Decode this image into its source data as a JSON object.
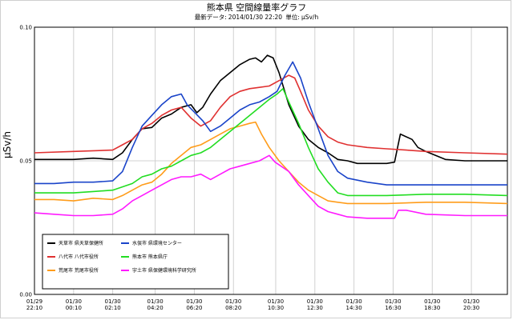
{
  "chart_data": {
    "type": "line",
    "title": "熊本県 空間線量率グラフ",
    "subtitle": {
      "latest_label": "最新データ:",
      "latest_value": "2014/01/30 22:20",
      "unit_label": "単位:",
      "unit_value": "μSv/h"
    },
    "ylabel": "μSv/h",
    "ylim": [
      0,
      0.1
    ],
    "yticks": [
      "0.00",
      "0.05",
      "0.10"
    ],
    "ytick_values": [
      0,
      0.05,
      0.1
    ],
    "grid": true,
    "legend_position": "bottom-left",
    "x_ticks": [
      {
        "date": "01/29",
        "time": "22:10"
      },
      {
        "date": "01/30",
        "time": "00:10"
      },
      {
        "date": "01/30",
        "time": "02:10"
      },
      {
        "date": "01/30",
        "time": "04:20"
      },
      {
        "date": "01/30",
        "time": "06:20"
      },
      {
        "date": "01/30",
        "time": "08:20"
      },
      {
        "date": "01/30",
        "time": "10:30"
      },
      {
        "date": "01/30",
        "time": "12:30"
      },
      {
        "date": "01/30",
        "time": "14:30"
      },
      {
        "date": "01/30",
        "time": "16:30"
      },
      {
        "date": "01/30",
        "time": "18:30"
      },
      {
        "date": "01/30",
        "time": "20:30"
      }
    ],
    "x_tick_hours": [
      0,
      2,
      4,
      6.17,
      8.17,
      10.17,
      12.33,
      14.33,
      16.33,
      18.33,
      20.33,
      22.33
    ],
    "x_range_hours": [
      0,
      24.17
    ],
    "series": [
      {
        "name": "天草市 県天草保健所",
        "color": "#000000",
        "points": [
          [
            0,
            0.0505
          ],
          [
            1,
            0.0505
          ],
          [
            2,
            0.0505
          ],
          [
            3,
            0.051
          ],
          [
            4,
            0.0505
          ],
          [
            4.5,
            0.053
          ],
          [
            5,
            0.058
          ],
          [
            5.5,
            0.062
          ],
          [
            6,
            0.0625
          ],
          [
            6.5,
            0.066
          ],
          [
            7,
            0.0675
          ],
          [
            7.5,
            0.07
          ],
          [
            8,
            0.071
          ],
          [
            8.3,
            0.068
          ],
          [
            8.6,
            0.07
          ],
          [
            9,
            0.075
          ],
          [
            9.5,
            0.08
          ],
          [
            10,
            0.083
          ],
          [
            10.5,
            0.086
          ],
          [
            11,
            0.088
          ],
          [
            11.3,
            0.0885
          ],
          [
            11.6,
            0.087
          ],
          [
            11.9,
            0.0895
          ],
          [
            12.2,
            0.0885
          ],
          [
            12.5,
            0.083
          ],
          [
            13,
            0.071
          ],
          [
            13.5,
            0.063
          ],
          [
            14,
            0.058
          ],
          [
            14.5,
            0.055
          ],
          [
            15,
            0.053
          ],
          [
            15.5,
            0.0505
          ],
          [
            16,
            0.05
          ],
          [
            16.5,
            0.049
          ],
          [
            17,
            0.049
          ],
          [
            18,
            0.049
          ],
          [
            18.4,
            0.0495
          ],
          [
            18.7,
            0.06
          ],
          [
            19.3,
            0.058
          ],
          [
            19.6,
            0.055
          ],
          [
            20,
            0.0535
          ],
          [
            21,
            0.0505
          ],
          [
            22,
            0.05
          ],
          [
            24.17,
            0.05
          ]
        ]
      },
      {
        "name": "八代市 八代市役所",
        "color": "#e03131",
        "points": [
          [
            0,
            0.053
          ],
          [
            2,
            0.0535
          ],
          [
            4,
            0.054
          ],
          [
            4.5,
            0.056
          ],
          [
            5,
            0.058
          ],
          [
            5.5,
            0.062
          ],
          [
            6,
            0.064
          ],
          [
            6.5,
            0.067
          ],
          [
            7,
            0.069
          ],
          [
            7.5,
            0.07
          ],
          [
            8,
            0.066
          ],
          [
            8.5,
            0.063
          ],
          [
            9,
            0.065
          ],
          [
            9.5,
            0.07
          ],
          [
            10,
            0.074
          ],
          [
            10.5,
            0.076
          ],
          [
            11,
            0.077
          ],
          [
            11.5,
            0.0775
          ],
          [
            12,
            0.078
          ],
          [
            12.5,
            0.08
          ],
          [
            13,
            0.082
          ],
          [
            13.3,
            0.081
          ],
          [
            13.6,
            0.076
          ],
          [
            14,
            0.069
          ],
          [
            14.5,
            0.063
          ],
          [
            15,
            0.059
          ],
          [
            15.5,
            0.057
          ],
          [
            16,
            0.056
          ],
          [
            17,
            0.055
          ],
          [
            18,
            0.0545
          ],
          [
            19,
            0.054
          ],
          [
            20,
            0.0535
          ],
          [
            22,
            0.053
          ],
          [
            24.17,
            0.0525
          ]
        ]
      },
      {
        "name": "荒尾市 荒尾市役所",
        "color": "#ff9c1a",
        "points": [
          [
            0,
            0.0355
          ],
          [
            1,
            0.0355
          ],
          [
            2,
            0.035
          ],
          [
            3,
            0.036
          ],
          [
            4,
            0.0355
          ],
          [
            4.5,
            0.037
          ],
          [
            5,
            0.039
          ],
          [
            5.5,
            0.041
          ],
          [
            6,
            0.042
          ],
          [
            6.5,
            0.045
          ],
          [
            7,
            0.049
          ],
          [
            7.5,
            0.052
          ],
          [
            8,
            0.055
          ],
          [
            8.5,
            0.056
          ],
          [
            9,
            0.058
          ],
          [
            9.5,
            0.06
          ],
          [
            10,
            0.062
          ],
          [
            10.5,
            0.063
          ],
          [
            11,
            0.064
          ],
          [
            11.3,
            0.0645
          ],
          [
            11.6,
            0.06
          ],
          [
            12,
            0.055
          ],
          [
            12.5,
            0.05
          ],
          [
            13,
            0.046
          ],
          [
            13.5,
            0.042
          ],
          [
            14,
            0.039
          ],
          [
            14.5,
            0.037
          ],
          [
            15,
            0.035
          ],
          [
            15.5,
            0.0345
          ],
          [
            16,
            0.034
          ],
          [
            18,
            0.034
          ],
          [
            20,
            0.0345
          ],
          [
            22,
            0.0345
          ],
          [
            24.17,
            0.034
          ]
        ]
      },
      {
        "name": "水俣市 県環境センター",
        "color": "#1a44c9",
        "points": [
          [
            0,
            0.0415
          ],
          [
            1,
            0.0415
          ],
          [
            2,
            0.042
          ],
          [
            3,
            0.042
          ],
          [
            4,
            0.0425
          ],
          [
            4.5,
            0.046
          ],
          [
            5,
            0.055
          ],
          [
            5.5,
            0.063
          ],
          [
            6,
            0.067
          ],
          [
            6.5,
            0.071
          ],
          [
            7,
            0.074
          ],
          [
            7.5,
            0.075
          ],
          [
            7.8,
            0.071
          ],
          [
            8.2,
            0.068
          ],
          [
            8.6,
            0.065
          ],
          [
            9,
            0.061
          ],
          [
            9.5,
            0.063
          ],
          [
            10,
            0.066
          ],
          [
            10.5,
            0.069
          ],
          [
            11,
            0.071
          ],
          [
            11.5,
            0.072
          ],
          [
            12,
            0.074
          ],
          [
            12.4,
            0.076
          ],
          [
            12.8,
            0.082
          ],
          [
            13.2,
            0.087
          ],
          [
            13.6,
            0.081
          ],
          [
            14,
            0.072
          ],
          [
            14.5,
            0.062
          ],
          [
            15,
            0.052
          ],
          [
            15.5,
            0.046
          ],
          [
            16,
            0.0435
          ],
          [
            17,
            0.042
          ],
          [
            18,
            0.041
          ],
          [
            20,
            0.041
          ],
          [
            22,
            0.041
          ],
          [
            24.17,
            0.041
          ]
        ]
      },
      {
        "name": "熊本市 熊本県庁",
        "color": "#22dd22",
        "points": [
          [
            0,
            0.038
          ],
          [
            1,
            0.038
          ],
          [
            2,
            0.038
          ],
          [
            3,
            0.0385
          ],
          [
            4,
            0.039
          ],
          [
            5,
            0.0415
          ],
          [
            5.5,
            0.044
          ],
          [
            6,
            0.045
          ],
          [
            6.5,
            0.047
          ],
          [
            7,
            0.048
          ],
          [
            7.5,
            0.05
          ],
          [
            8,
            0.052
          ],
          [
            8.5,
            0.053
          ],
          [
            9,
            0.055
          ],
          [
            9.5,
            0.058
          ],
          [
            10,
            0.061
          ],
          [
            10.5,
            0.064
          ],
          [
            11,
            0.067
          ],
          [
            11.5,
            0.07
          ],
          [
            12,
            0.073
          ],
          [
            12.4,
            0.075
          ],
          [
            12.7,
            0.077
          ],
          [
            13,
            0.072
          ],
          [
            13.5,
            0.064
          ],
          [
            14,
            0.055
          ],
          [
            14.5,
            0.047
          ],
          [
            15,
            0.042
          ],
          [
            15.5,
            0.038
          ],
          [
            16,
            0.037
          ],
          [
            18,
            0.037
          ],
          [
            20,
            0.0375
          ],
          [
            22,
            0.0375
          ],
          [
            24.17,
            0.037
          ]
        ]
      },
      {
        "name": "宇土市 県保健環境科学研究所",
        "color": "#ff1aff",
        "points": [
          [
            0,
            0.0305
          ],
          [
            1,
            0.03
          ],
          [
            2,
            0.0295
          ],
          [
            3,
            0.0295
          ],
          [
            4,
            0.03
          ],
          [
            4.5,
            0.032
          ],
          [
            5,
            0.035
          ],
          [
            5.5,
            0.037
          ],
          [
            6,
            0.039
          ],
          [
            6.5,
            0.041
          ],
          [
            7,
            0.043
          ],
          [
            7.5,
            0.044
          ],
          [
            8,
            0.044
          ],
          [
            8.5,
            0.045
          ],
          [
            9,
            0.043
          ],
          [
            9.5,
            0.045
          ],
          [
            10,
            0.047
          ],
          [
            10.5,
            0.048
          ],
          [
            11,
            0.049
          ],
          [
            11.5,
            0.05
          ],
          [
            12,
            0.052
          ],
          [
            12.3,
            0.0495
          ],
          [
            12.6,
            0.048
          ],
          [
            13,
            0.046
          ],
          [
            13.5,
            0.041
          ],
          [
            14,
            0.037
          ],
          [
            14.5,
            0.033
          ],
          [
            15,
            0.031
          ],
          [
            15.5,
            0.03
          ],
          [
            16,
            0.029
          ],
          [
            17,
            0.0285
          ],
          [
            18,
            0.0285
          ],
          [
            18.4,
            0.0285
          ],
          [
            18.6,
            0.0315
          ],
          [
            19,
            0.0315
          ],
          [
            20,
            0.03
          ],
          [
            22,
            0.0295
          ],
          [
            24.17,
            0.0295
          ]
        ]
      }
    ]
  }
}
